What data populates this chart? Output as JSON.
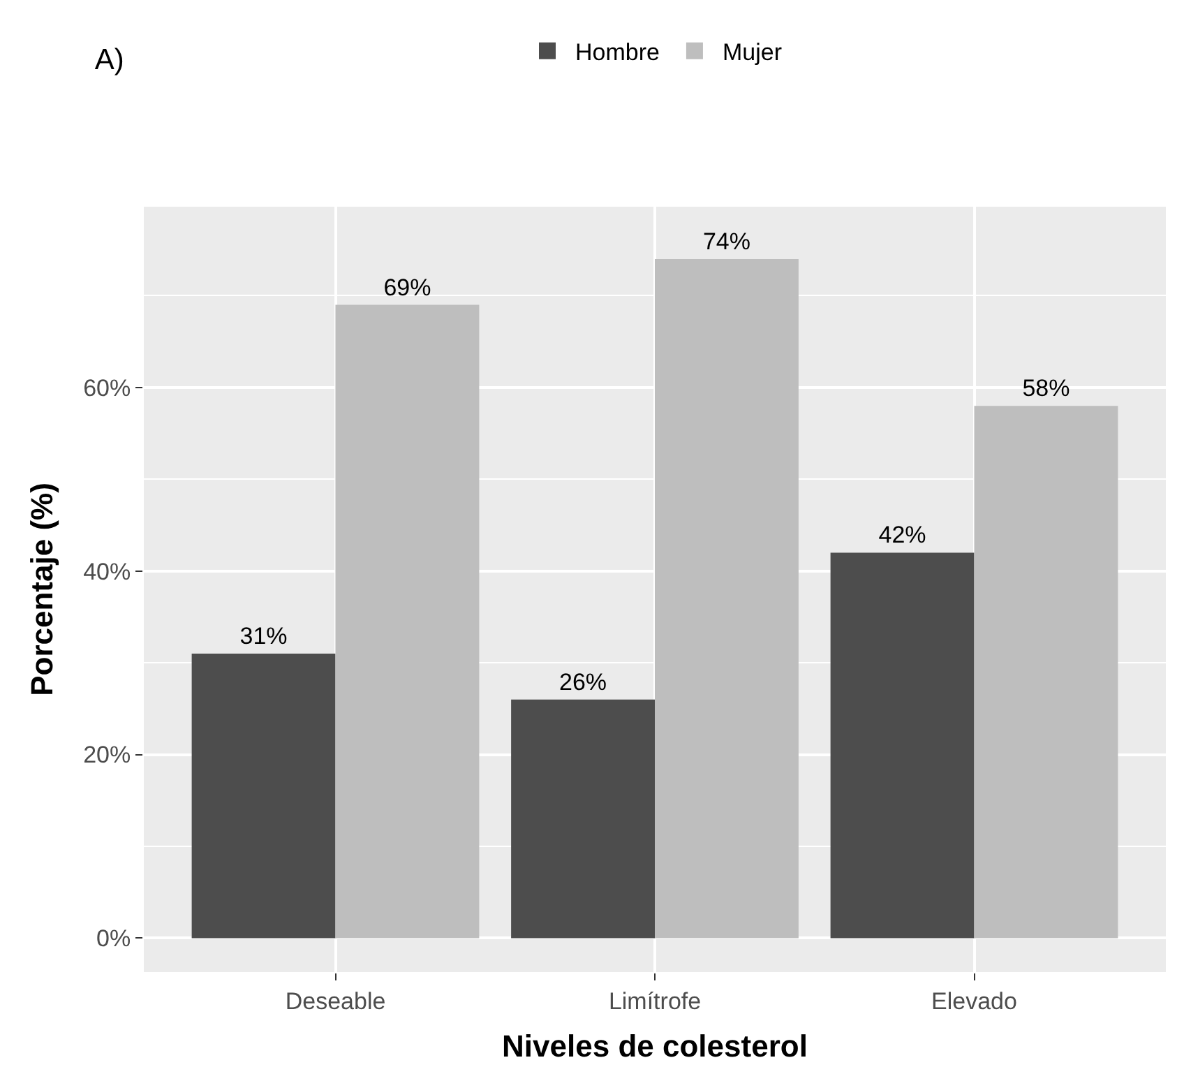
{
  "chart_data": {
    "type": "bar",
    "title": "A)",
    "xlabel": "Niveles de colesterol",
    "ylabel": "Porcentaje (%)",
    "categories": [
      "Deseable",
      "Limítrofe",
      "Elevado"
    ],
    "series": [
      {
        "name": "Hombre",
        "color": "#4d4d4d",
        "values": [
          31,
          26,
          42
        ],
        "value_labels": [
          "31%",
          "26%",
          "42%"
        ]
      },
      {
        "name": "Mujer",
        "color": "#bebebe",
        "values": [
          69,
          74,
          58
        ],
        "value_labels": [
          "69%",
          "74%",
          "58%"
        ]
      }
    ],
    "ylim": [
      -3.7,
      79.7
    ],
    "yticks": [
      {
        "value": 0,
        "label": "0%"
      },
      {
        "value": 20,
        "label": "20%"
      },
      {
        "value": 40,
        "label": "40%"
      },
      {
        "value": 60,
        "label": "60%"
      }
    ],
    "grid": true,
    "legend": "top"
  }
}
